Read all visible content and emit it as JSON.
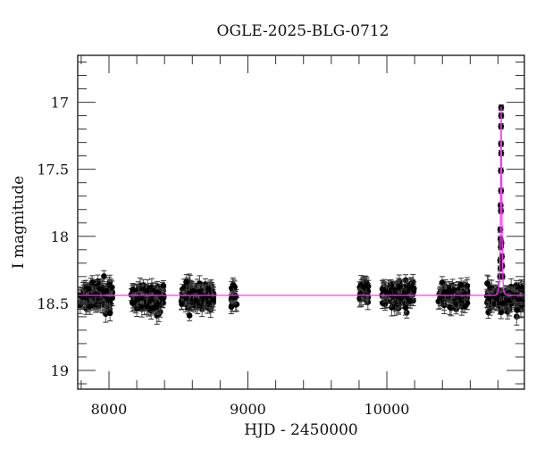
{
  "chart_data": {
    "type": "scatter",
    "title": "OGLE-2025-BLG-0712",
    "xlabel": "HJD - 2450000",
    "ylabel": "I magnitude",
    "xlim": [
      7775,
      10990
    ],
    "ylim": [
      19.14,
      16.65
    ],
    "y_inverted": true,
    "x_ticks_major": [
      8000,
      9000,
      10000
    ],
    "x_tick_labels": [
      "8000",
      "9000",
      "10000"
    ],
    "x_minor_step": 200,
    "y_ticks_major": [
      17,
      17.5,
      18,
      18.5,
      19
    ],
    "y_tick_labels": [
      "17",
      "17.5",
      "18",
      "18.5",
      "19"
    ],
    "y_minor_step": 0.1,
    "grid": false,
    "legend": null,
    "series": [
      {
        "name": "observations",
        "style": "points-with-errorbars",
        "color": "#000000",
        "seasons": [
          {
            "x_range": [
              7785,
              8025
            ],
            "mag_mean": 18.45,
            "mag_scatter": 0.06,
            "err": 0.05,
            "n": 140
          },
          {
            "x_range": [
              8160,
              8395
            ],
            "mag_mean": 18.46,
            "mag_scatter": 0.06,
            "err": 0.05,
            "n": 130
          },
          {
            "x_range": [
              8520,
              8755
            ],
            "mag_mean": 18.46,
            "mag_scatter": 0.06,
            "err": 0.05,
            "n": 140
          },
          {
            "x_range": [
              8880,
              8920
            ],
            "mag_mean": 18.46,
            "mag_scatter": 0.06,
            "err": 0.05,
            "n": 20
          },
          {
            "x_range": [
              9800,
              9870
            ],
            "mag_mean": 18.42,
            "mag_scatter": 0.05,
            "err": 0.05,
            "n": 40
          },
          {
            "x_range": [
              9965,
              10200
            ],
            "mag_mean": 18.43,
            "mag_scatter": 0.06,
            "err": 0.05,
            "n": 110
          },
          {
            "x_range": [
              10370,
              10580
            ],
            "mag_mean": 18.45,
            "mag_scatter": 0.05,
            "err": 0.05,
            "n": 100
          },
          {
            "x_range": [
              10720,
              10990
            ],
            "mag_mean": 18.46,
            "mag_scatter": 0.06,
            "err": 0.05,
            "n": 120
          }
        ],
        "event_points": [
          {
            "x": 10823,
            "y": 17.04
          },
          {
            "x": 10823,
            "y": 17.1
          },
          {
            "x": 10822,
            "y": 17.18
          },
          {
            "x": 10822,
            "y": 17.31
          },
          {
            "x": 10823,
            "y": 17.38
          },
          {
            "x": 10821,
            "y": 17.51
          },
          {
            "x": 10822,
            "y": 17.66
          },
          {
            "x": 10819,
            "y": 17.77
          },
          {
            "x": 10821,
            "y": 17.81
          },
          {
            "x": 10817,
            "y": 17.95
          },
          {
            "x": 10818,
            "y": 18.02
          },
          {
            "x": 10820,
            "y": 18.08
          },
          {
            "x": 10825,
            "y": 18.05
          },
          {
            "x": 10816,
            "y": 18.18
          },
          {
            "x": 10818,
            "y": 18.24
          },
          {
            "x": 10828,
            "y": 18.15
          },
          {
            "x": 10830,
            "y": 18.22
          },
          {
            "x": 10815,
            "y": 18.3
          },
          {
            "x": 10832,
            "y": 18.3
          }
        ]
      },
      {
        "name": "model",
        "style": "line",
        "color": "#ff33ff",
        "baseline_mag": 18.44,
        "peak_x": 10823,
        "peak_mag": 17.03,
        "tE_days": 8
      }
    ]
  }
}
